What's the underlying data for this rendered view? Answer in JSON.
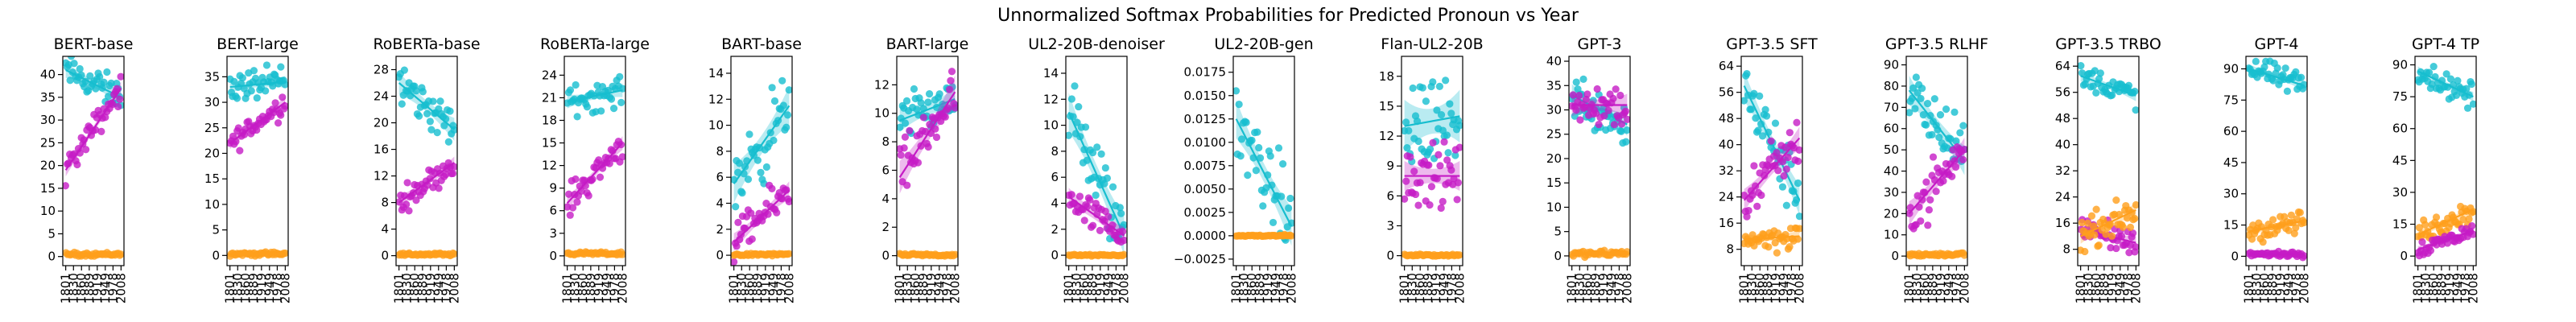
{
  "suptitle": "Unnormalized Softmax Probabilities for Predicted Pronoun vs Year",
  "colors": {
    "cyan": "#17becf",
    "magenta": "#c51bc5",
    "orange": "#ff9f1c"
  },
  "chart_data": [
    {
      "type": "scatter",
      "title": "BERT-base",
      "ylim": [
        -2,
        44
      ],
      "yticks": [
        0,
        5,
        10,
        15,
        20,
        25,
        30,
        35,
        40
      ],
      "xlim": [
        1790,
        2019
      ],
      "xticks": [
        1801,
        1830,
        1860,
        1889,
        1919,
        1949,
        1978,
        2008
      ],
      "series": [
        {
          "color": "cyan",
          "start": 41,
          "end": 35,
          "noise": 1.8,
          "band": 1.5
        },
        {
          "color": "magenta",
          "start": 19,
          "end": 37,
          "noise": 1.5,
          "band": 1.2
        },
        {
          "color": "orange",
          "start": 0.5,
          "end": 0.5,
          "noise": 0.2,
          "band": 0.3
        }
      ]
    },
    {
      "type": "scatter",
      "title": "BERT-large",
      "ylim": [
        -2,
        39
      ],
      "yticks": [
        0,
        5,
        10,
        15,
        20,
        25,
        30,
        35
      ],
      "xlim": [
        1790,
        2019
      ],
      "xticks": [
        1801,
        1830,
        1860,
        1889,
        1919,
        1949,
        1978,
        2008
      ],
      "series": [
        {
          "color": "cyan",
          "start": 33,
          "end": 34,
          "noise": 1.5,
          "band": 1.0
        },
        {
          "color": "magenta",
          "start": 22,
          "end": 30,
          "noise": 1.2,
          "band": 1.0
        },
        {
          "color": "orange",
          "start": 0.3,
          "end": 0.3,
          "noise": 0.2,
          "band": 0.3
        }
      ]
    },
    {
      "type": "scatter",
      "title": "RoBERTa-base",
      "ylim": [
        -1.5,
        30
      ],
      "yticks": [
        0,
        4,
        8,
        12,
        16,
        20,
        24,
        28
      ],
      "xlim": [
        1790,
        2019
      ],
      "xticks": [
        1801,
        1830,
        1860,
        1889,
        1919,
        1949,
        1978,
        2008
      ],
      "series": [
        {
          "color": "cyan",
          "start": 26,
          "end": 19,
          "noise": 1.6,
          "band": 1.5
        },
        {
          "color": "magenta",
          "start": 8,
          "end": 14,
          "noise": 0.9,
          "band": 0.8
        },
        {
          "color": "orange",
          "start": 0.2,
          "end": 0.2,
          "noise": 0.1,
          "band": 0.2
        }
      ]
    },
    {
      "type": "scatter",
      "title": "RoBERTa-large",
      "ylim": [
        -1.3,
        26.5
      ],
      "yticks": [
        0,
        3,
        6,
        9,
        12,
        15,
        18,
        21,
        24
      ],
      "xlim": [
        1790,
        2019
      ],
      "xticks": [
        1801,
        1830,
        1860,
        1889,
        1919,
        1949,
        1978,
        2008
      ],
      "series": [
        {
          "color": "cyan",
          "start": 20.5,
          "end": 22,
          "noise": 1.0,
          "band": 0.8
        },
        {
          "color": "magenta",
          "start": 7,
          "end": 15,
          "noise": 1.0,
          "band": 0.8
        },
        {
          "color": "orange",
          "start": 0.3,
          "end": 0.3,
          "noise": 0.1,
          "band": 0.2
        }
      ]
    },
    {
      "type": "scatter",
      "title": "BART-base",
      "ylim": [
        -0.8,
        15.3
      ],
      "yticks": [
        0,
        2,
        4,
        6,
        8,
        10,
        12,
        14
      ],
      "xlim": [
        1790,
        2019
      ],
      "xticks": [
        1801,
        1830,
        1860,
        1889,
        1919,
        1949,
        1978,
        2008
      ],
      "series": [
        {
          "color": "cyan",
          "start": 5.5,
          "end": 11.5,
          "noise": 1.5,
          "band": 1.3
        },
        {
          "color": "magenta",
          "start": 1,
          "end": 5,
          "noise": 0.7,
          "band": 0.6
        },
        {
          "color": "orange",
          "start": 0.05,
          "end": 0.05,
          "noise": 0.05,
          "band": 0.1
        }
      ]
    },
    {
      "type": "scatter",
      "title": "BART-large",
      "ylim": [
        -0.7,
        14
      ],
      "yticks": [
        0,
        2,
        4,
        6,
        8,
        10,
        12
      ],
      "xlim": [
        1790,
        2019
      ],
      "xticks": [
        1801,
        1830,
        1860,
        1889,
        1919,
        1949,
        1978,
        2008
      ],
      "series": [
        {
          "color": "cyan",
          "start": 9.5,
          "end": 11,
          "noise": 0.8,
          "band": 0.7
        },
        {
          "color": "magenta",
          "start": 5.5,
          "end": 11.5,
          "noise": 1.0,
          "band": 1.0
        },
        {
          "color": "orange",
          "start": 0.05,
          "end": 0.05,
          "noise": 0.05,
          "band": 0.1
        }
      ]
    },
    {
      "type": "scatter",
      "title": "UL2-20B-denoiser",
      "ylim": [
        -0.8,
        15.3
      ],
      "yticks": [
        0,
        2,
        4,
        6,
        8,
        10,
        12,
        14
      ],
      "xlim": [
        1790,
        2019
      ],
      "xticks": [
        1801,
        1830,
        1860,
        1889,
        1919,
        1949,
        1978,
        2008
      ],
      "series": [
        {
          "color": "cyan",
          "start": 11,
          "end": 1.5,
          "noise": 1.5,
          "band": 1.3
        },
        {
          "color": "magenta",
          "start": 4.5,
          "end": 1.5,
          "noise": 0.6,
          "band": 0.6
        },
        {
          "color": "orange",
          "start": 0,
          "end": 0,
          "noise": 0.03,
          "band": 0.05
        }
      ]
    },
    {
      "type": "scatter",
      "title": "UL2-20B-gen",
      "ylim": [
        -0.0032,
        0.0192
      ],
      "yticks": [
        -0.0025,
        0,
        0.0025,
        0.005,
        0.0075,
        0.01,
        0.0125,
        0.015,
        0.0175
      ],
      "ytick_labels": [
        "−0.0025",
        "0.0000",
        "0.0025",
        "0.0050",
        "0.0075",
        "0.0100",
        "0.0125",
        "0.0150",
        "0.0175"
      ],
      "xlim": [
        1790,
        2019
      ],
      "xticks": [
        1801,
        1830,
        1860,
        1889,
        1919,
        1949,
        1978,
        2008
      ],
      "series": [
        {
          "color": "cyan",
          "start": 0.0125,
          "end": 0.001,
          "noise": 0.0022,
          "band": 0.0018
        },
        {
          "color": "orange",
          "start": 0,
          "end": 0,
          "noise": 5e-05,
          "band": 0.0001
        }
      ]
    },
    {
      "type": "scatter",
      "title": "Flan-UL2-20B",
      "ylim": [
        -1,
        20
      ],
      "yticks": [
        0,
        3,
        6,
        9,
        12,
        15,
        18
      ],
      "xlim": [
        1790,
        2019
      ],
      "xticks": [
        1801,
        1830,
        1860,
        1889,
        1919,
        1949,
        1978,
        2008
      ],
      "series": [
        {
          "color": "cyan",
          "start": 13,
          "end": 14,
          "noise": 2.5,
          "band": 2.3
        },
        {
          "color": "magenta",
          "start": 8,
          "end": 8,
          "noise": 1.5,
          "band": 1.3
        },
        {
          "color": "orange",
          "start": 0.05,
          "end": 0.05,
          "noise": 0.05,
          "band": 0.1
        }
      ]
    },
    {
      "type": "scatter",
      "title": "GPT-3",
      "ylim": [
        -2,
        41
      ],
      "yticks": [
        0,
        5,
        10,
        15,
        20,
        25,
        30,
        35,
        40
      ],
      "xlim": [
        1790,
        2019
      ],
      "xticks": [
        1801,
        1830,
        1860,
        1889,
        1919,
        1949,
        1978,
        2008
      ],
      "series": [
        {
          "color": "cyan",
          "start": 33,
          "end": 27,
          "noise": 2.5,
          "band": 2.0
        },
        {
          "color": "magenta",
          "start": 31,
          "end": 31,
          "noise": 2.5,
          "band": 2.0
        },
        {
          "color": "orange",
          "start": 0.3,
          "end": 0.6,
          "noise": 0.3,
          "band": 0.3
        }
      ]
    },
    {
      "type": "scatter",
      "title": "GPT-3.5 SFT",
      "ylim": [
        3,
        67
      ],
      "yticks": [
        8,
        16,
        24,
        32,
        40,
        48,
        56,
        64
      ],
      "xlim": [
        1790,
        2019
      ],
      "xticks": [
        1801,
        1830,
        1860,
        1889,
        1919,
        1949,
        1978,
        2008
      ],
      "series": [
        {
          "color": "cyan",
          "start": 58,
          "end": 23,
          "noise": 5,
          "band": 4.0
        },
        {
          "color": "magenta",
          "start": 23,
          "end": 42,
          "noise": 4,
          "band": 3.0
        },
        {
          "color": "orange",
          "start": 11,
          "end": 12,
          "noise": 2,
          "band": 1.5
        }
      ]
    },
    {
      "type": "scatter",
      "title": "GPT-3.5 RLHF",
      "ylim": [
        -4.5,
        94
      ],
      "yticks": [
        0,
        10,
        20,
        30,
        40,
        50,
        60,
        70,
        80,
        90
      ],
      "xlim": [
        1790,
        2019
      ],
      "xticks": [
        1801,
        1830,
        1860,
        1889,
        1919,
        1949,
        1978,
        2008
      ],
      "series": [
        {
          "color": "cyan",
          "start": 78,
          "end": 45,
          "noise": 7,
          "band": 6.0
        },
        {
          "color": "magenta",
          "start": 20,
          "end": 50,
          "noise": 6,
          "band": 5.0
        },
        {
          "color": "orange",
          "start": 0.5,
          "end": 1,
          "noise": 0.4,
          "band": 0.5
        }
      ]
    },
    {
      "type": "scatter",
      "title": "GPT-3.5 TRBO",
      "ylim": [
        3,
        67
      ],
      "yticks": [
        8,
        16,
        24,
        32,
        40,
        48,
        56,
        64
      ],
      "xlim": [
        1790,
        2019
      ],
      "xticks": [
        1801,
        1830,
        1860,
        1889,
        1919,
        1949,
        1978,
        2008
      ],
      "series": [
        {
          "color": "cyan",
          "start": 61,
          "end": 55,
          "noise": 2,
          "band": 1.5
        },
        {
          "color": "magenta",
          "start": 14,
          "end": 10,
          "noise": 2,
          "band": 1.8
        },
        {
          "color": "orange",
          "start": 12,
          "end": 20,
          "noise": 2.5,
          "band": 2.0
        }
      ]
    },
    {
      "type": "scatter",
      "title": "GPT-4",
      "ylim": [
        -4.5,
        96
      ],
      "yticks": [
        0,
        15,
        30,
        45,
        60,
        75,
        90
      ],
      "xlim": [
        1790,
        2019
      ],
      "xticks": [
        1801,
        1830,
        1860,
        1889,
        1919,
        1949,
        1978,
        2008
      ],
      "series": [
        {
          "color": "cyan",
          "start": 90,
          "end": 82,
          "noise": 3,
          "band": 2.0
        },
        {
          "color": "orange",
          "start": 12,
          "end": 17,
          "noise": 3,
          "band": 2.0
        },
        {
          "color": "magenta",
          "start": 1,
          "end": 1,
          "noise": 0.6,
          "band": 0.5
        }
      ]
    },
    {
      "type": "scatter",
      "title": "GPT-4 TP",
      "ylim": [
        -4.5,
        94
      ],
      "yticks": [
        0,
        15,
        30,
        45,
        60,
        75,
        90
      ],
      "xlim": [
        1790,
        2019
      ],
      "xticks": [
        1801,
        1830,
        1860,
        1889,
        1919,
        1949,
        1978,
        2008
      ],
      "series": [
        {
          "color": "cyan",
          "start": 87,
          "end": 75,
          "noise": 3,
          "band": 2.0
        },
        {
          "color": "orange",
          "start": 10,
          "end": 22,
          "noise": 3,
          "band": 2.0
        },
        {
          "color": "magenta",
          "start": 3,
          "end": 12,
          "noise": 2,
          "band": 1.5
        }
      ]
    }
  ]
}
